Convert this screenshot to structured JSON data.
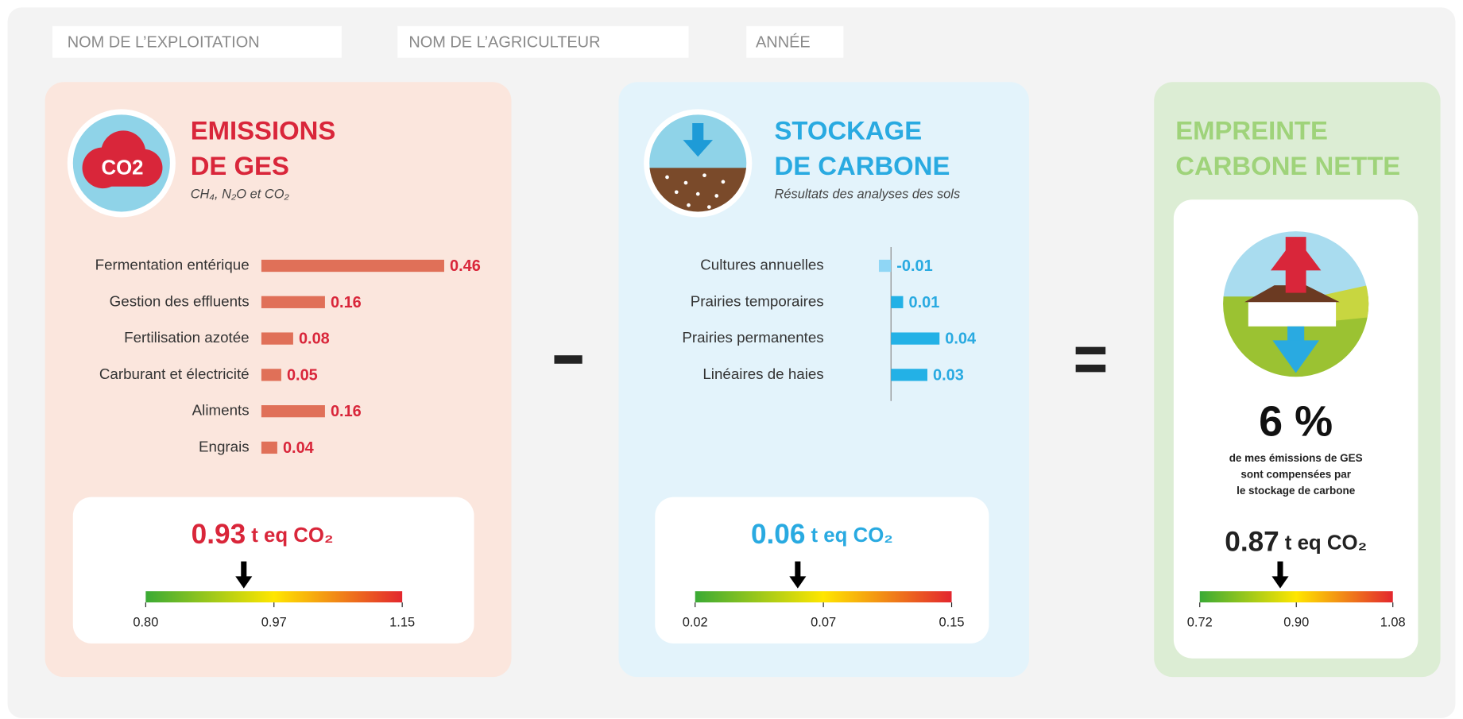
{
  "header": {
    "farm": "NOM DE L’EXPLOITATION",
    "farmer": "NOM DE L’AGRICULTEUR",
    "year": "ANNÉE"
  },
  "emissions": {
    "icon": "CO2",
    "title": [
      "EMISSIONS",
      "DE GES"
    ],
    "subtitle": "CH₄, N₂O et CO₂",
    "title_color": "#d9263a",
    "color": "#e07058",
    "categories": [
      "Fermentation entérique",
      "Gestion des effluents",
      "Fertilisation azotée",
      "Carburant et électricité",
      "Aliments",
      "Engrais"
    ],
    "values": [
      0.46,
      0.16,
      0.08,
      0.05,
      0.16,
      0.04
    ],
    "total": {
      "value": 0.93,
      "label": "0.93",
      "unit": "t eq CO₂",
      "ticks": [
        {
          "value": 0.8,
          "label": "0.80"
        },
        0.97,
        1.15
      ]
    }
  },
  "storage": {
    "title": [
      "STOCKAGE",
      "DE CARBONE"
    ],
    "subtitle": "Résultats des analyses des sols",
    "title_color": "#29aae1",
    "color": "#23b1e6",
    "negative_color": "#8fd6f5",
    "categories": [
      "Cultures annuelles",
      "Prairies temporaires",
      "Prairies permanentes",
      "Linéaires de haies"
    ],
    "values": [
      -0.01,
      0.01,
      0.04,
      0.03
    ],
    "total": {
      "value": 0.06,
      "label": "0.06",
      "unit": "t eq CO₂",
      "ticks": [
        0.02,
        0.07,
        0.15
      ]
    }
  },
  "net": {
    "title": [
      "EMPREINTE",
      "CARBONE NETTE"
    ],
    "title_color": "#9fd37a",
    "percent": "6 %",
    "caption": [
      "de mes émissions de GES",
      "sont compensées par",
      "le stockage de carbone"
    ],
    "total": {
      "value": 0.87,
      "label": "0.87",
      "unit": "t eq CO₂",
      "ticks": [
        0.72,
        {
          "value": 0.9,
          "label": "0.90"
        },
        1.08
      ]
    }
  }
}
